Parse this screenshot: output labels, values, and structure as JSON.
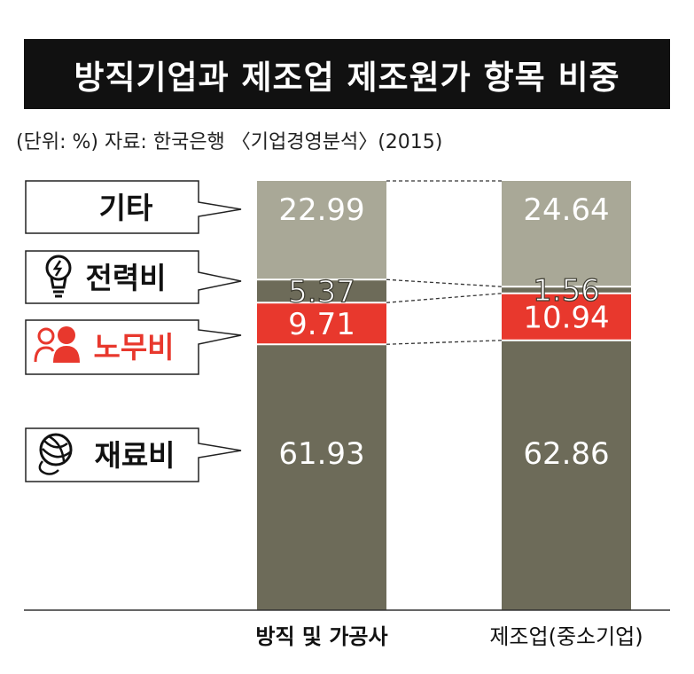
{
  "title": "방직기업과 제조업 제조원가 항목 비중",
  "source": "(단위: %) 자료: 한국은행 〈기업경영분석〉(2015)",
  "colors": {
    "기타": "#a9a897",
    "전력비": "#6d6b59",
    "노무비": "#e8382d",
    "재료비": "#6d6b59",
    "labor_label": "#e8382d"
  },
  "legend": [
    {
      "label": "기타",
      "icon": ""
    },
    {
      "label": "전력비",
      "icon": "lightbulb-icon"
    },
    {
      "label": "노무비",
      "icon": "person-icon"
    },
    {
      "label": "재료비",
      "icon": "yarn-ball-icon"
    }
  ],
  "chart_data": {
    "type": "bar",
    "stacked": true,
    "categories": [
      "방직 및 가공사",
      "제조업(중소기업)"
    ],
    "series": [
      {
        "name": "재료비",
        "values": [
          61.93,
          62.86
        ]
      },
      {
        "name": "노무비",
        "values": [
          9.71,
          10.94
        ]
      },
      {
        "name": "전력비",
        "values": [
          5.37,
          1.56
        ]
      },
      {
        "name": "기타",
        "values": [
          22.99,
          24.64
        ]
      }
    ],
    "value_labels": {
      "재료비": [
        "61.93",
        "62.86"
      ],
      "노무비": [
        "9.71",
        "10.94"
      ],
      "전력비": [
        "5.37",
        "1.56"
      ],
      "기타": [
        "22.99",
        "24.64"
      ]
    },
    "ylim": [
      0,
      100
    ]
  }
}
